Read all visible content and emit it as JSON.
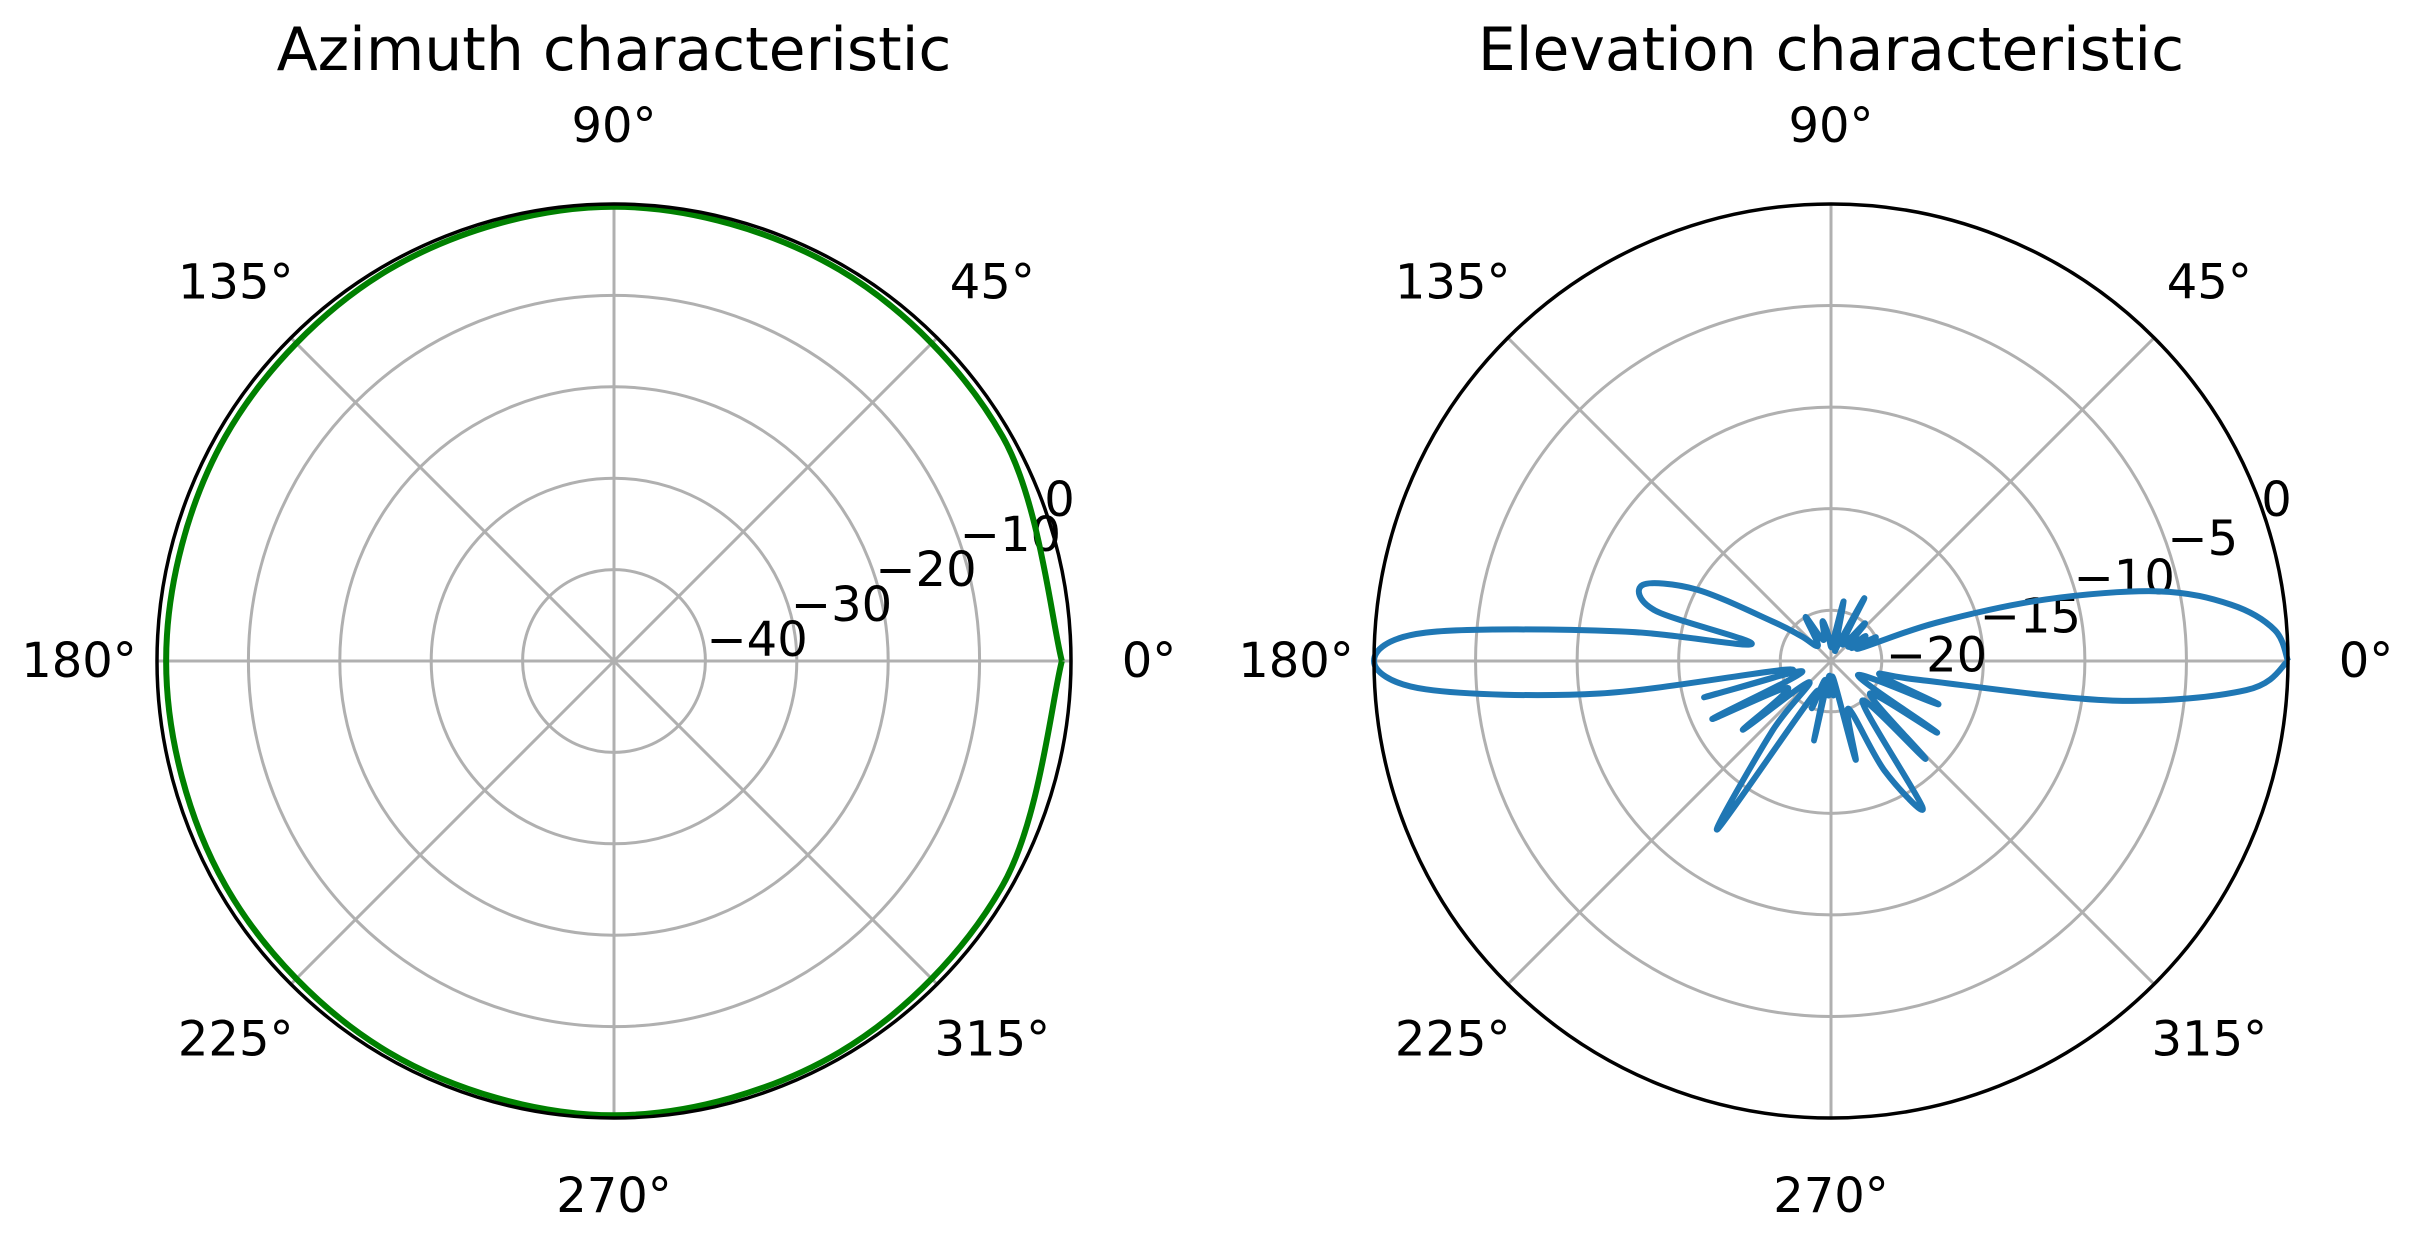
{
  "chart_data": [
    {
      "type": "polar-line",
      "title": "Azimuth characteristic",
      "theta_labels": [
        "0°",
        "45°",
        "90°",
        "135°",
        "180°",
        "225°",
        "270°",
        "315°"
      ],
      "r_labels": [
        "−40",
        "−30",
        "−20",
        "−10",
        "0"
      ],
      "rlim": [
        -50,
        0
      ],
      "r_ticks": [
        -40,
        -30,
        -20,
        -10,
        0
      ],
      "theta_deg": [
        0,
        30,
        60,
        90,
        120,
        150,
        180,
        210,
        240,
        270,
        300,
        330,
        360
      ],
      "values": [
        -1.0,
        -0.9,
        -0.6,
        -0.3,
        -0.6,
        -0.9,
        -1.0,
        -0.9,
        -0.6,
        -0.3,
        -0.6,
        -0.9,
        -1.0
      ],
      "color": "#008000"
    },
    {
      "type": "polar-line",
      "title": "Elevation characteristic",
      "theta_labels": [
        "0°",
        "45°",
        "90°",
        "135°",
        "180°",
        "225°",
        "270°",
        "315°"
      ],
      "r_labels": [
        "−20",
        "−15",
        "−10",
        "−5",
        "0"
      ],
      "rlim": [
        -22.5,
        0
      ],
      "r_ticks": [
        -20,
        -15,
        -10,
        -5,
        0
      ],
      "theta_deg": [
        0,
        4,
        8,
        12,
        16,
        20,
        24,
        28,
        32,
        36,
        40,
        48,
        56,
        62,
        66,
        72,
        78,
        84,
        90,
        96,
        102,
        110,
        120,
        130,
        140,
        146,
        152,
        158,
        164,
        168,
        172,
        176,
        180,
        184,
        188,
        192,
        196,
        200,
        206,
        212,
        218,
        224,
        230,
        236,
        242,
        248,
        254,
        258,
        262,
        266,
        270,
        274,
        278,
        284,
        290,
        296,
        302,
        308,
        314,
        320,
        326,
        332,
        338,
        344,
        348,
        352,
        356,
        360
      ],
      "values": [
        0.0,
        -0.6,
        -2.6,
        -6.0,
        -11.5,
        -17.0,
        -21.0,
        -20.0,
        -21.3,
        -20.4,
        -21.4,
        -20.0,
        -21.5,
        -19.0,
        -21.5,
        -21.8,
        -19.5,
        -21.5,
        -21.8,
        -21.2,
        -20.5,
        -21.4,
        -20.0,
        -21.5,
        -20.6,
        -19.0,
        -15.0,
        -12.5,
        -13.5,
        -18.5,
        -12.0,
        -2.5,
        0.0,
        -2.5,
        -11.0,
        -20.5,
        -16.0,
        -21.0,
        -16.0,
        -20.0,
        -17.0,
        -21.0,
        -18.0,
        -12.5,
        -20.5,
        -20.0,
        -21.5,
        -18.5,
        -21.7,
        -20.8,
        -21.5,
        -20.8,
        -21.6,
        -17.5,
        -20.0,
        -16.5,
        -14.0,
        -20.0,
        -15.8,
        -20.0,
        -16.2,
        -21.0,
        -16.8,
        -20.0,
        -18.0,
        -8.5,
        -2.0,
        0.0
      ],
      "color": "#1f77b4"
    }
  ]
}
